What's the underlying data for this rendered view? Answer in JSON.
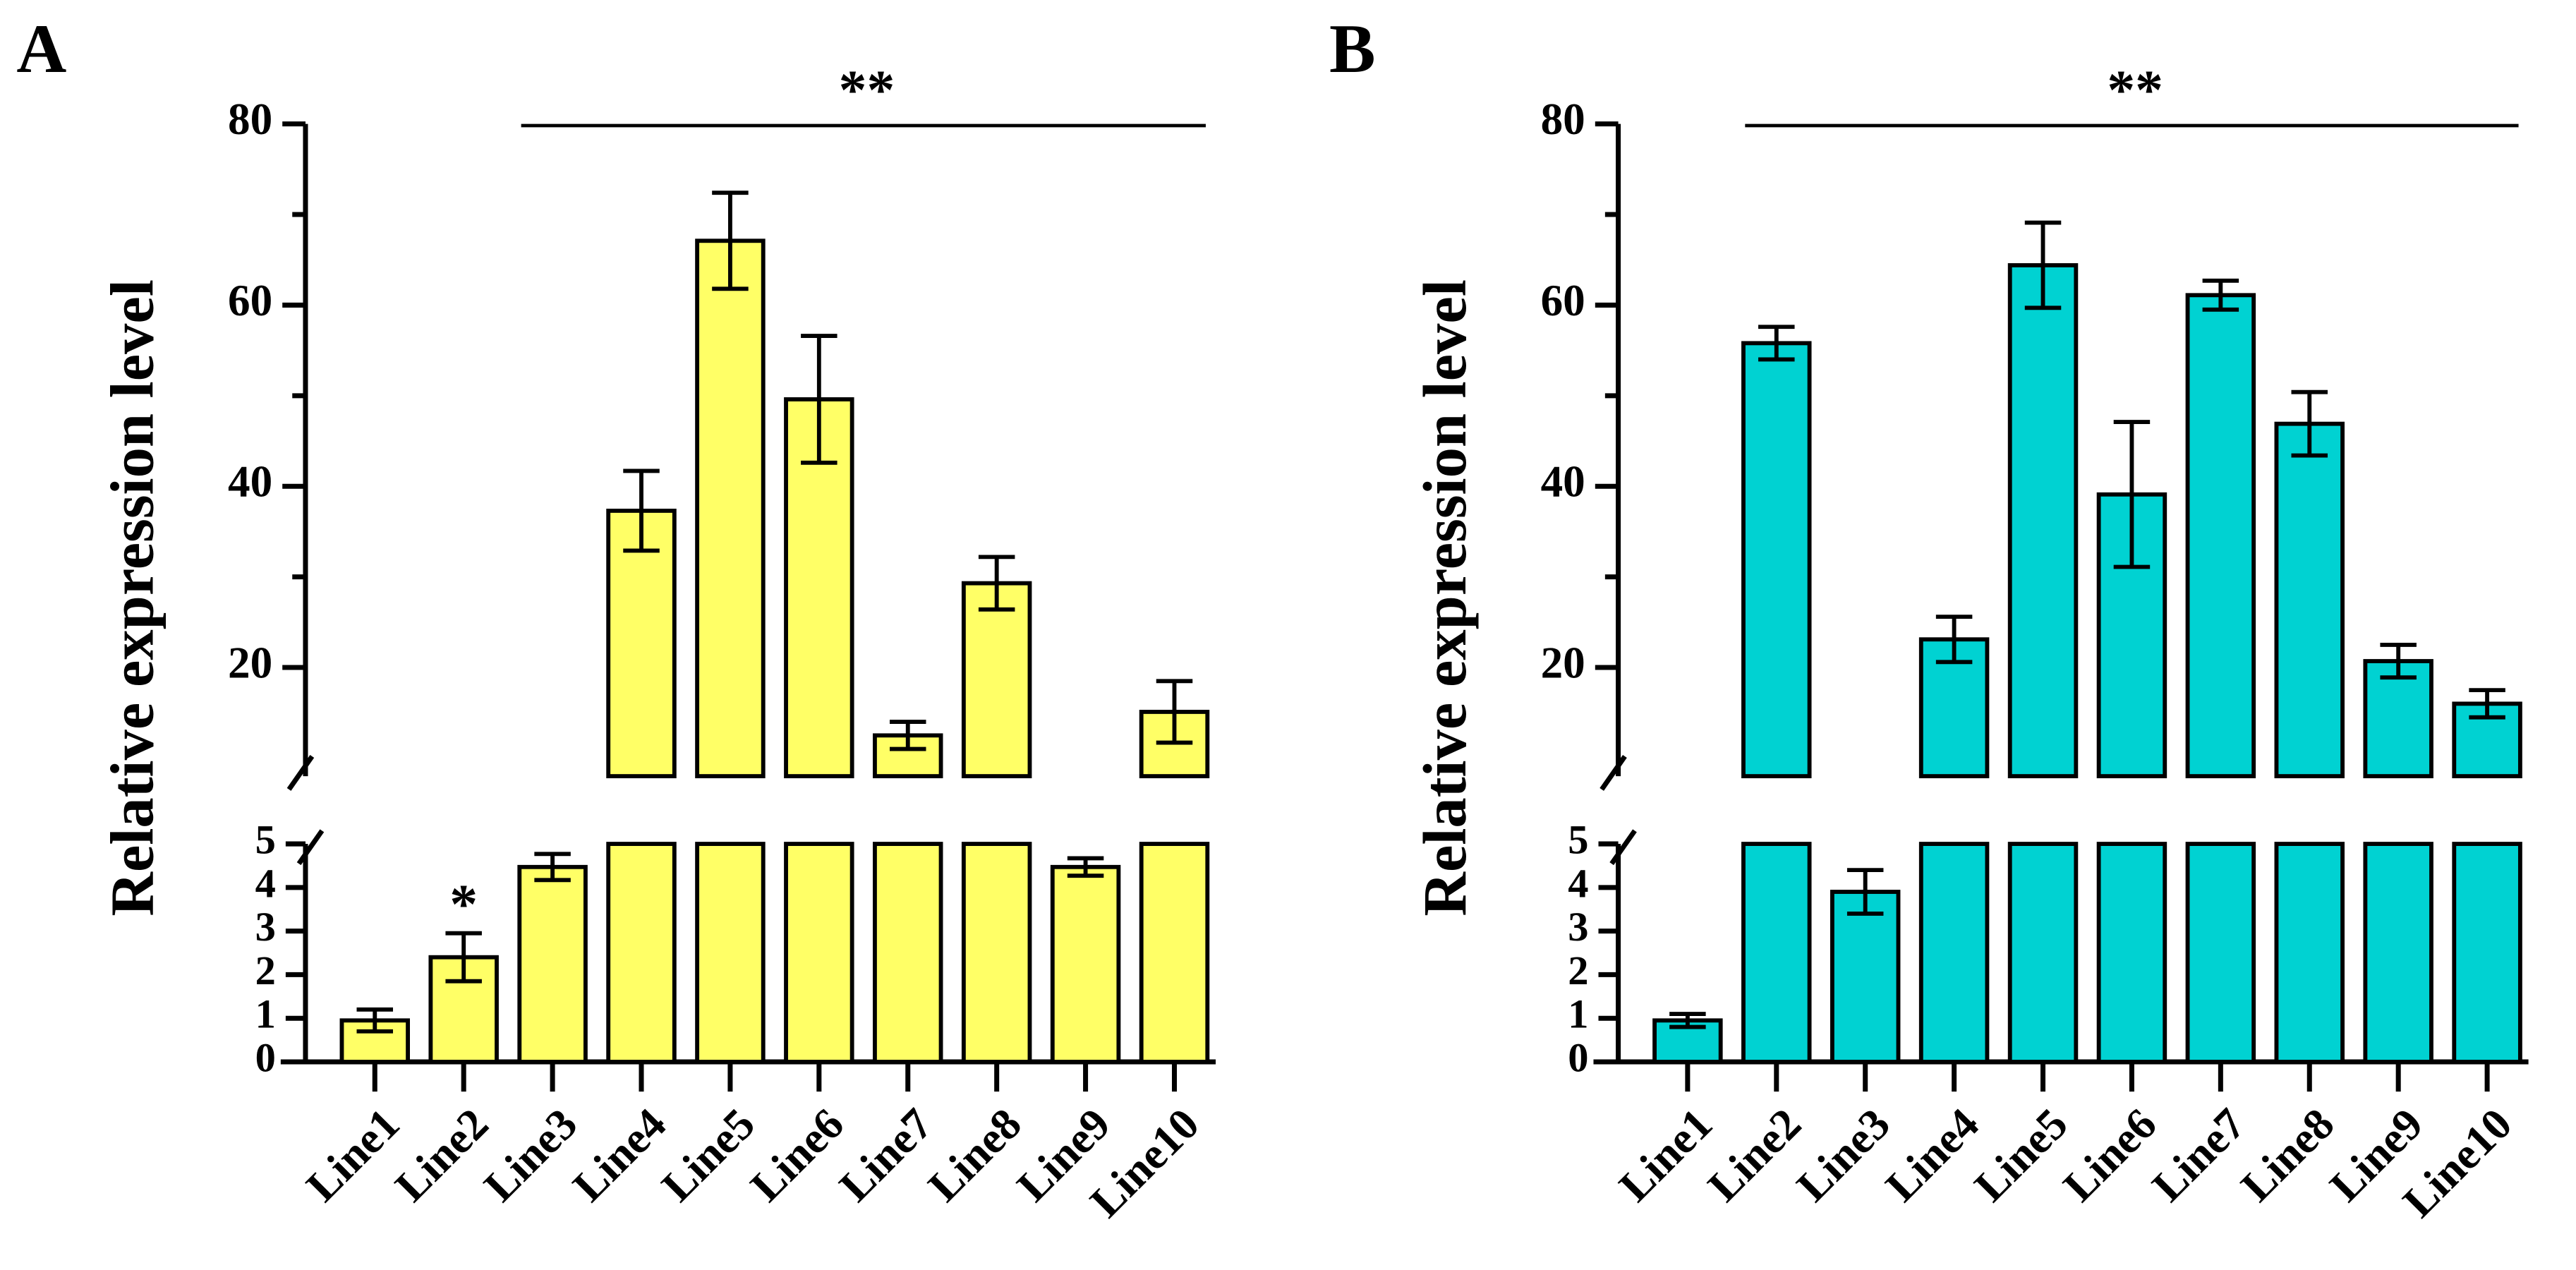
{
  "chart_data": [
    {
      "type": "bar",
      "panel": "A",
      "y_label": "Relative expression level",
      "color": "#ffff66",
      "categories": [
        "Line1",
        "Line2",
        "Line3",
        "Line4",
        "Line5",
        "Line6",
        "Line7",
        "Line8",
        "Line9",
        "Line10"
      ],
      "values": [
        0.95,
        2.4,
        4.47,
        37.3,
        67.1,
        49.6,
        12.5,
        29.3,
        4.47,
        15.1
      ],
      "errors": [
        0.25,
        0.55,
        0.3,
        4.4,
        5.3,
        7,
        1.5,
        2.9,
        0.2,
        3.4
      ],
      "ylim_lower": [
        0,
        5
      ],
      "yticks_lower": [
        0,
        1,
        2,
        3,
        4,
        5
      ],
      "ylim_upper": [
        8,
        80
      ],
      "yticks_upper": [
        20,
        40,
        60,
        80
      ],
      "minor_yticks_upper": [
        30,
        50,
        70
      ],
      "annotations": [
        {
          "text": "**",
          "from": "Line3",
          "to": "Line10"
        },
        {
          "text": "*",
          "category": "Line2"
        }
      ]
    },
    {
      "type": "bar",
      "panel": "B",
      "y_label": "Relative expression level",
      "color": "#00d2d2",
      "categories": [
        "Line1",
        "Line2",
        "Line3",
        "Line4",
        "Line5",
        "Line6",
        "Line7",
        "Line8",
        "Line9",
        "Line10"
      ],
      "values": [
        0.95,
        55.8,
        3.9,
        23.1,
        64.4,
        39.1,
        61.1,
        46.9,
        20.7,
        16
      ],
      "errors": [
        0.15,
        1.8,
        0.5,
        2.5,
        4.7,
        8,
        1.6,
        3.5,
        1.8,
        1.5
      ],
      "ylim_lower": [
        0,
        5
      ],
      "yticks_lower": [
        0,
        1,
        2,
        3,
        4,
        5
      ],
      "ylim_upper": [
        8,
        80
      ],
      "yticks_upper": [
        20,
        40,
        60,
        80
      ],
      "minor_yticks_upper": [
        30,
        50,
        70
      ],
      "annotations": [
        {
          "text": "**",
          "from": "Line2",
          "to": "Line10"
        }
      ]
    }
  ]
}
